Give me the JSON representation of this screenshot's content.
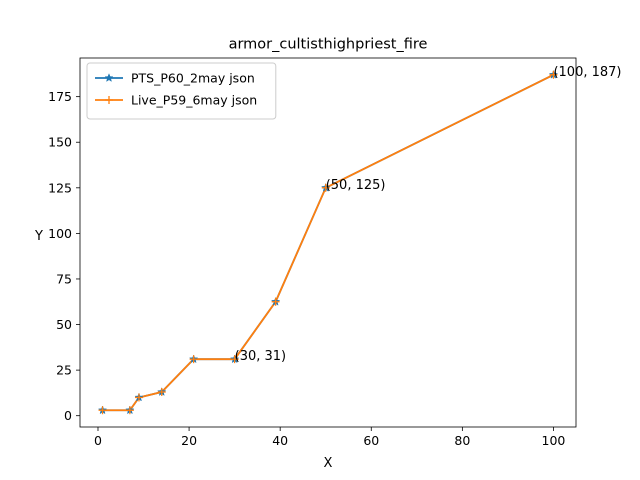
{
  "chart_data": {
    "type": "line",
    "title": "armor_cultisthighpriest_fire",
    "xlabel": "X",
    "ylabel": "Y",
    "xlim": [
      -3.95,
      104.95
    ],
    "ylim": [
      -6.2,
      196.2
    ],
    "xticks": [
      0,
      20,
      40,
      60,
      80,
      100
    ],
    "yticks": [
      0,
      25,
      50,
      75,
      100,
      125,
      150,
      175
    ],
    "legend_position": "top-left",
    "grid": false,
    "series": [
      {
        "name": "PTS_P60_2may json",
        "color": "#1f77b4",
        "marker": "star",
        "x": [
          1,
          7,
          9,
          14,
          21,
          30,
          39,
          50,
          100
        ],
        "y": [
          3,
          3,
          10,
          13,
          31,
          31,
          62.5,
          125,
          187
        ]
      },
      {
        "name": "Live_P59_6may json",
        "color": "#ff7f0e",
        "marker": "plus",
        "x": [
          1,
          7,
          9,
          14,
          21,
          30,
          39,
          50,
          100
        ],
        "y": [
          3,
          3,
          10,
          13,
          31,
          31,
          62.5,
          125,
          187
        ]
      }
    ],
    "annotations": [
      {
        "text": "(30, 31)",
        "x": 30,
        "y": 31
      },
      {
        "text": "(50, 125)",
        "x": 50,
        "y": 125
      },
      {
        "text": "(100, 187)",
        "x": 100,
        "y": 187
      }
    ]
  }
}
